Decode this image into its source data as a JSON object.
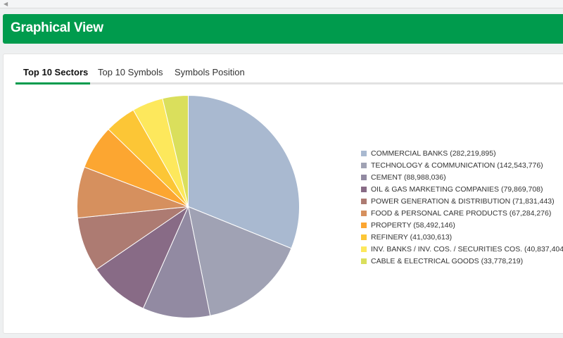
{
  "header": {
    "title": "Graphical View"
  },
  "tabs": [
    {
      "label": "Top 10 Sectors",
      "active": true
    },
    {
      "label": "Top 10 Symbols",
      "active": false
    },
    {
      "label": "Symbols Position",
      "active": false
    }
  ],
  "chart_data": {
    "type": "pie",
    "legend_position": "right",
    "slices": [
      {
        "label": "COMMERCIAL BANKS",
        "value": 282219895,
        "display": "282,219,895",
        "color": "#a9b9d0"
      },
      {
        "label": "TECHNOLOGY & COMMUNICATION",
        "value": 142543776,
        "display": "142,543,776",
        "color": "#a0a2b4"
      },
      {
        "label": "CEMENT",
        "value": 88988036,
        "display": "88,988,036",
        "color": "#928aa2"
      },
      {
        "label": "OIL & GAS MARKETING COMPANIES",
        "value": 79869708,
        "display": "79,869,708",
        "color": "#886b86"
      },
      {
        "label": "POWER GENERATION & DISTRIBUTION",
        "value": 71831443,
        "display": "71,831,443",
        "color": "#ad7b72"
      },
      {
        "label": "FOOD & PERSONAL CARE PRODUCTS",
        "value": 67284276,
        "display": "67,284,276",
        "color": "#d6905e"
      },
      {
        "label": "PROPERTY",
        "value": 58492146,
        "display": "58,492,146",
        "color": "#fca631"
      },
      {
        "label": "REFINERY",
        "value": 41030613,
        "display": "41,030,613",
        "color": "#fcc636"
      },
      {
        "label": "INV. BANKS / INV. COS. / SECURITIES COS.",
        "value": 40837404,
        "display": "40,837,404",
        "color": "#fde85c"
      },
      {
        "label": "CABLE & ELECTRICAL GOODS",
        "value": 33778219,
        "display": "33,778,219",
        "color": "#dadf5c"
      }
    ]
  }
}
